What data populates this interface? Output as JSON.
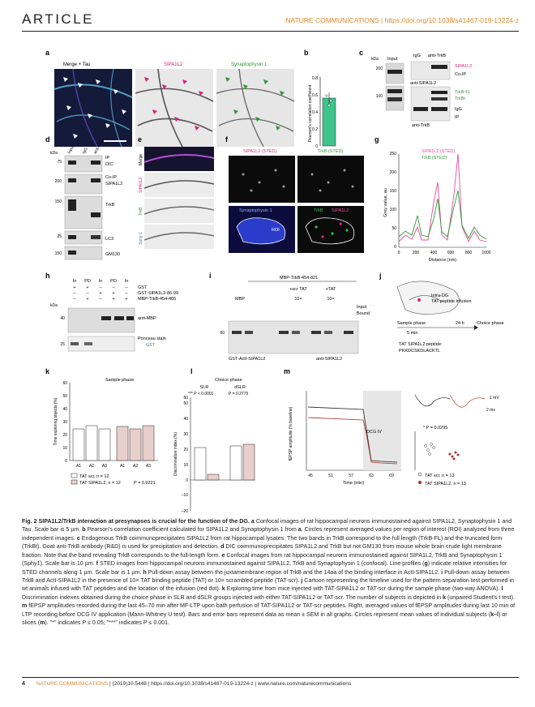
{
  "header": {
    "section": "ARTICLE",
    "journal_doi": "NATURE COMMUNICATIONS | https://doi.org/10.1038/s41467-019-13224-z"
  },
  "panels": {
    "a": {
      "label": "a",
      "titles": [
        "Merge + Tau",
        "SIPA1L2",
        "Synaptophysin 1"
      ]
    },
    "b": {
      "label": "b",
      "ylabel": "Pearson's correlation coefficient",
      "ticks": [
        "0",
        "0.2",
        "0.4",
        "0.6",
        "0.8"
      ],
      "value": 0.58
    },
    "c": {
      "label": "c",
      "kda": "kDa",
      "input": "Input",
      "igg": "IgG",
      "anti_trkb": "anti-TrkB",
      "anti_sipa": "anti-SIPA1L2",
      "markers": [
        "200",
        "100"
      ],
      "right_labels": [
        "SIPA1L2",
        "Co-IP",
        "TrkB-FL",
        "TrkBt",
        "IgG",
        "IP"
      ],
      "bottom": "anti-TrkB"
    },
    "d": {
      "label": "d",
      "kda": "kDa",
      "cols": [
        "Input",
        "IgG",
        "anti-DIC"
      ],
      "markers": [
        "75",
        "200",
        "150",
        "25",
        "150"
      ],
      "right_labels": [
        "IP",
        "DIC",
        "Co-IP",
        "SIPA1L2",
        "TrkB",
        "LC3",
        "GM130"
      ]
    },
    "e": {
      "label": "e",
      "rows": [
        "Merge",
        "SIPA1L2",
        "TrkB",
        "Sphy-1"
      ]
    },
    "f": {
      "label": "f",
      "titles": [
        "SIPA1L2 (STED)",
        "TrkB (STED)",
        "Synaptophysin 1",
        "TrkB",
        "SIPA1L2"
      ],
      "roi": "ROI"
    },
    "g": {
      "label": "g",
      "legend": [
        "SIPA1L2 (STED)",
        "TrkB (STED)"
      ],
      "ylabel": "Grey value, au",
      "xlabel": "Distance (nm)",
      "xticks": [
        "0",
        "200",
        "400",
        "600",
        "800",
        "1000"
      ],
      "yticks": [
        "0",
        "50",
        "100",
        "150",
        "200",
        "250"
      ]
    },
    "h": {
      "label": "h",
      "cols": [
        "In",
        "PD",
        "In",
        "PD",
        "In"
      ],
      "rows": [
        "GST",
        "GST-SIPA1L2-86-99",
        "MBP-TrkB-454-465"
      ],
      "signs": [
        [
          "+",
          "+",
          "–",
          "–",
          "–"
        ],
        [
          "–",
          "–",
          "+",
          "+",
          "–"
        ],
        [
          "–",
          "+",
          "–",
          "+",
          "+"
        ]
      ],
      "kda": "kDa",
      "markers": [
        "40",
        "25"
      ],
      "labels": [
        "anti-MBP",
        "Ponceau stain",
        "GST"
      ]
    },
    "i": {
      "label": "i",
      "top": "MBP-TrkB-454-821",
      "groups": [
        "MBP",
        "+scr TAT",
        "+TAT",
        "10×",
        "10×"
      ],
      "legend": [
        "Input",
        "Bound"
      ],
      "marker": "60",
      "bottom_left": "GST-ActI-SIPA1L2",
      "bottom_right": "anti-SIPA1L2"
    },
    "j": {
      "label": "j",
      "texts": [
        "Intra-DG",
        "TAT peptide infusion",
        "Sample phase",
        "5 min",
        "24 h",
        "Choice phase",
        "TAT SIPA1L2 peptide:",
        "PKKDCSKDLACKTL"
      ]
    },
    "k": {
      "label": "k",
      "title": "Sample phase",
      "ylabel": "Time exploring objects (%)",
      "xcats": [
        "A1",
        "A2",
        "A3",
        "A1",
        "A2",
        "A3"
      ],
      "legend": [
        "TAT scr, n = 12",
        "TAT SIPA1L2, n = 12"
      ],
      "p": "P = 0.9221",
      "yticks": [
        "0",
        "10",
        "20",
        "30",
        "40",
        "50",
        "60"
      ]
    },
    "l": {
      "label": "l",
      "title": "Choice phase",
      "groups": [
        "SLR",
        "dSLR"
      ],
      "pvals": [
        "*** P < 0.0001",
        "P = 0.2775"
      ],
      "ylabel": "Discrimination index (%)",
      "yticks": [
        "–20",
        "–10",
        "0",
        "10",
        "20",
        "30",
        "40",
        "50",
        "60"
      ]
    },
    "m": {
      "label": "m",
      "ylabel": "fEPSP amplitude (% baseline)",
      "xlabel": "Time (min)",
      "xticks": [
        "45",
        "51",
        "57",
        "63",
        "69"
      ],
      "yticks": [
        "0",
        "20",
        "40",
        "60",
        "80",
        "100",
        "120",
        "140",
        "160",
        "180"
      ],
      "dcg": "DCG IV",
      "legend": [
        "TAT scr, n = 13",
        "TAT SIPA1L2, n = 13"
      ],
      "p": "* P = 0.0295",
      "scale": [
        "1 mV",
        "2 ms"
      ]
    }
  },
  "caption": {
    "title": "Fig. 2 SIPA1L2/TrkB interaction at presynapses is crucial for the function of the DG.",
    "body": [
      {
        "l": "a",
        "t": " Confocal images of rat hippocampal neurons immunostained against SIPA1L2, Synaptophysin 1 and Tau. Scale bar is 5 µm. "
      },
      {
        "l": "b",
        "t": " Pearson's correlation coefficient calculated for SIPA1L2 and Synaptophysin 1 from "
      },
      {
        "l": "a",
        "t": ". Circles represent averaged values per region of interest (ROI) analyzed from three independent images. "
      },
      {
        "l": "c",
        "t": " Endogenous TrkB coimmunoprecipitates SIPA1L2 from rat hippocampal lysates. The two bands in TrkB correspond to the full length (TrkB-FL) and the truncated form (TrkBt). Goat anti-TrkB antibody (R&D) is used for precipitation and detection. "
      },
      {
        "l": "d",
        "t": " DIC coimmunoprecipitates SIPA1L2 and TrkB but not GM130 from mouse whole brain crude light membrane fraction. Note that the band revealing TrkB corresponds to the full-length form. "
      },
      {
        "l": "e",
        "t": " Confocal images from rat hippocampal neurons immunostained against SIPA1L2, TrkB and Synaptophysin 1 (Sphy1). Scale bar is 10 µm. "
      },
      {
        "l": "f",
        "t": " STED images from hippocampal neurons immunostained against SIPA1L2, TrkB and Synaptophysin 1 (confocal). Line profiles ("
      },
      {
        "l": "g",
        "t": ") indicate relative intensities for STED channels along 1 µm. Scale bar is 1 µm. "
      },
      {
        "l": "h",
        "t": " Pull-down assay between the juxtamembrane region of TrkB and the 14aa of the binding interface in ActI-SIPA1L2. "
      },
      {
        "l": "i",
        "t": " Pull-down assay between TrkB and ActI-SIPA1L2 in the presence of 10× TAT binding peptide (TAT) or 10× scrambled peptide (TAT-scr). "
      },
      {
        "l": "j",
        "t": " Cartoon representing the timeline used for the pattern separation test performed in wt animals infused with TAT peptides and the location of the infusion (red dot). "
      },
      {
        "l": "k",
        "t": " Exploring time from mice injected with TAT-SIPA1L2 or TAT-scr during the sample phase (two-way ANOVA). "
      },
      {
        "l": "l",
        "t": " Discrimination indexes obtained during the choice phase in SLR and dSLR groups injected with either TAT-SIPA1L2 or TAT-scr. The number of subjects is depicted in "
      },
      {
        "l": "k",
        "t": " (unpaired Student's t test). "
      },
      {
        "l": "m",
        "t": " fEPSP amplitudes recorded during the last 45–70 min after MF-LTP upon bath perfusion of TAT-SIPA1L2 or TAT-scr peptides. Right, averaged values of fEPSP amplitudes during last 10 min of LTP recording before DCG IV application (Mann-Whitney U test). Bars and error bars represent data as mean ± SEM in all graphs. Circles represent mean values of individual subjects ("
      },
      {
        "l": "k–l",
        "t": ") or slices ("
      },
      {
        "l": "m",
        "t": "). \"*\" indicates P ≤ 0.05; \"***\" indicates P ≤ 0.001."
      }
    ]
  },
  "footer": {
    "page": "4",
    "journal": "NATURE COMMUNICATIONS",
    "citation": " | (2019)10:5448 | https://doi.org/10.1038/s41467-019-13224-z | www.nature.com/naturecommunications"
  },
  "colors": {
    "accent": "#e0892d",
    "magenta": "#d6247a",
    "green": "#2e9a3a",
    "bar_green": "#3ec48a",
    "red": "#a8322a"
  }
}
